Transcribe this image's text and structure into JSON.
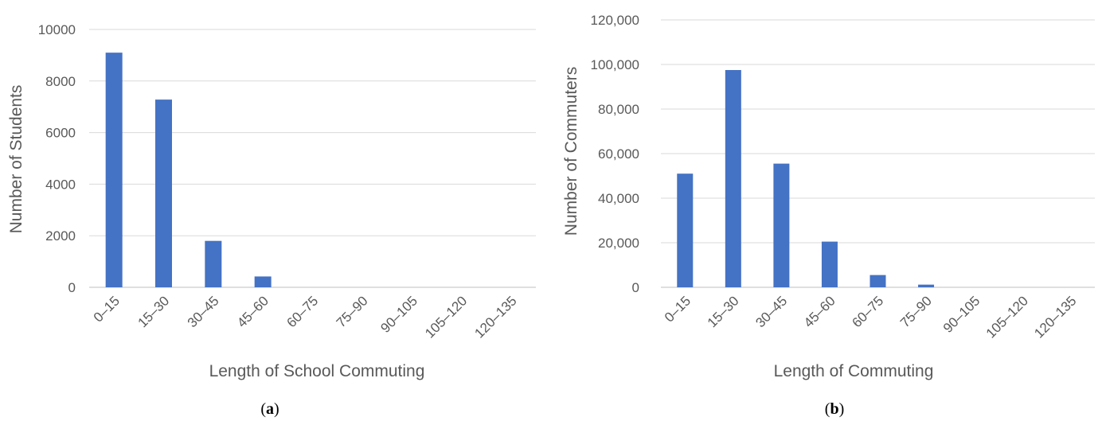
{
  "chart_data": [
    {
      "type": "bar",
      "panel_label": {
        "open": "(",
        "letter": "a",
        "close": ")"
      },
      "xlabel": "Length of School Commuting",
      "ylabel": "Number of Students",
      "categories": [
        "0–15",
        "15–30",
        "30–45",
        "45–60",
        "60–75",
        "75–90",
        "90–105",
        "105–120",
        "120–135"
      ],
      "values": [
        9100,
        7280,
        1800,
        420,
        0,
        0,
        0,
        0,
        0
      ],
      "ylim": [
        0,
        10000
      ],
      "yticks": [
        "0",
        "2000",
        "4000",
        "6000",
        "8000",
        "10000"
      ],
      "grid": true,
      "bar_color": "#4472C4",
      "grid_color": "#D9D9D9"
    },
    {
      "type": "bar",
      "panel_label": {
        "open": "(",
        "letter": "b",
        "close": ")"
      },
      "xlabel": "Length of Commuting",
      "ylabel": "Number of Commuters",
      "categories": [
        "0–15",
        "15–30",
        "30–45",
        "45–60",
        "60–75",
        "75–90",
        "90–105",
        "105–120",
        "120–135"
      ],
      "values": [
        51000,
        97500,
        55500,
        20500,
        5500,
        1200,
        0,
        0,
        0
      ],
      "ylim": [
        0,
        120000
      ],
      "yticks": [
        "0",
        "20,000",
        "40,000",
        "60,000",
        "80,000",
        "100,000",
        "120,000"
      ],
      "grid": true,
      "bar_color": "#4472C4",
      "grid_color": "#D9D9D9"
    }
  ]
}
